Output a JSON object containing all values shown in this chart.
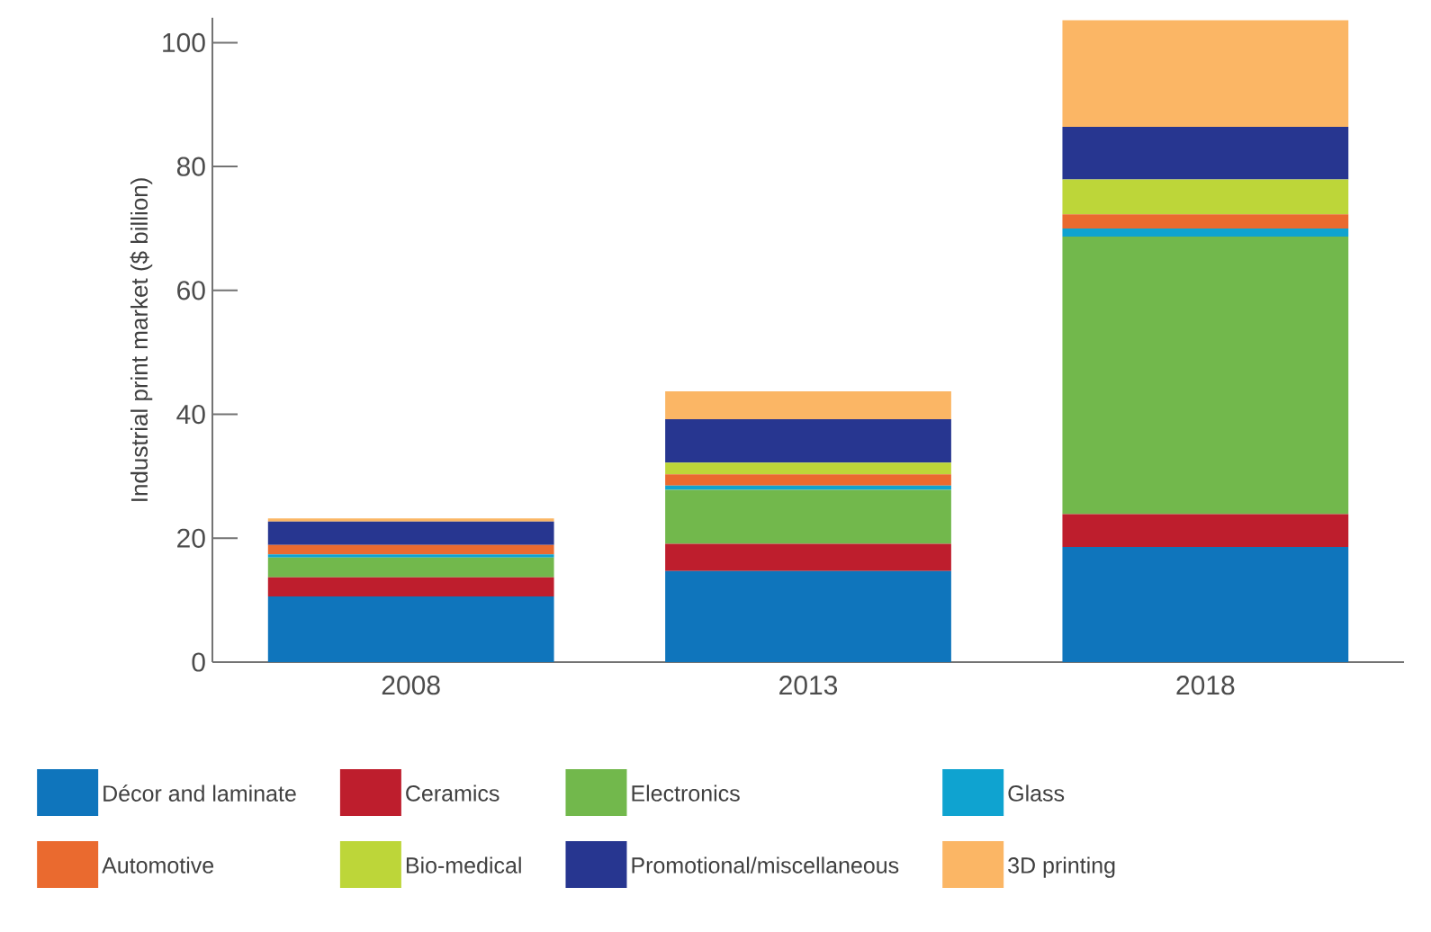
{
  "chart_data": {
    "type": "bar",
    "stacked": true,
    "ylabel": "Industrial print market ($ billion)",
    "categories": [
      "2008",
      "2013",
      "2018"
    ],
    "ylim": [
      0,
      104
    ],
    "yticks": [
      0,
      20,
      40,
      60,
      80,
      100
    ],
    "legend": "bottom",
    "series": [
      {
        "name": "Décor and laminate",
        "color": "#0f75bc",
        "values": [
          10.6,
          14.7,
          18.6
        ]
      },
      {
        "name": "Ceramics",
        "color": "#be1e2d",
        "values": [
          3.1,
          4.4,
          5.3
        ]
      },
      {
        "name": "Electronics",
        "color": "#72b84c",
        "values": [
          3.2,
          8.7,
          44.8
        ]
      },
      {
        "name": "Glass",
        "color": "#0fa3d0",
        "values": [
          0.5,
          0.7,
          1.3
        ]
      },
      {
        "name": "Automotive",
        "color": "#ea6a2f",
        "values": [
          1.5,
          1.8,
          2.3
        ]
      },
      {
        "name": "Bio-medical",
        "color": "#bdd639",
        "values": [
          0,
          1.9,
          5.6
        ]
      },
      {
        "name": "Promotional/miscellaneous",
        "color": "#273690",
        "values": [
          3.8,
          7.0,
          8.5
        ]
      },
      {
        "name": "3D printing",
        "color": "#fbb665",
        "values": [
          0.5,
          4.5,
          17.2
        ]
      }
    ]
  }
}
